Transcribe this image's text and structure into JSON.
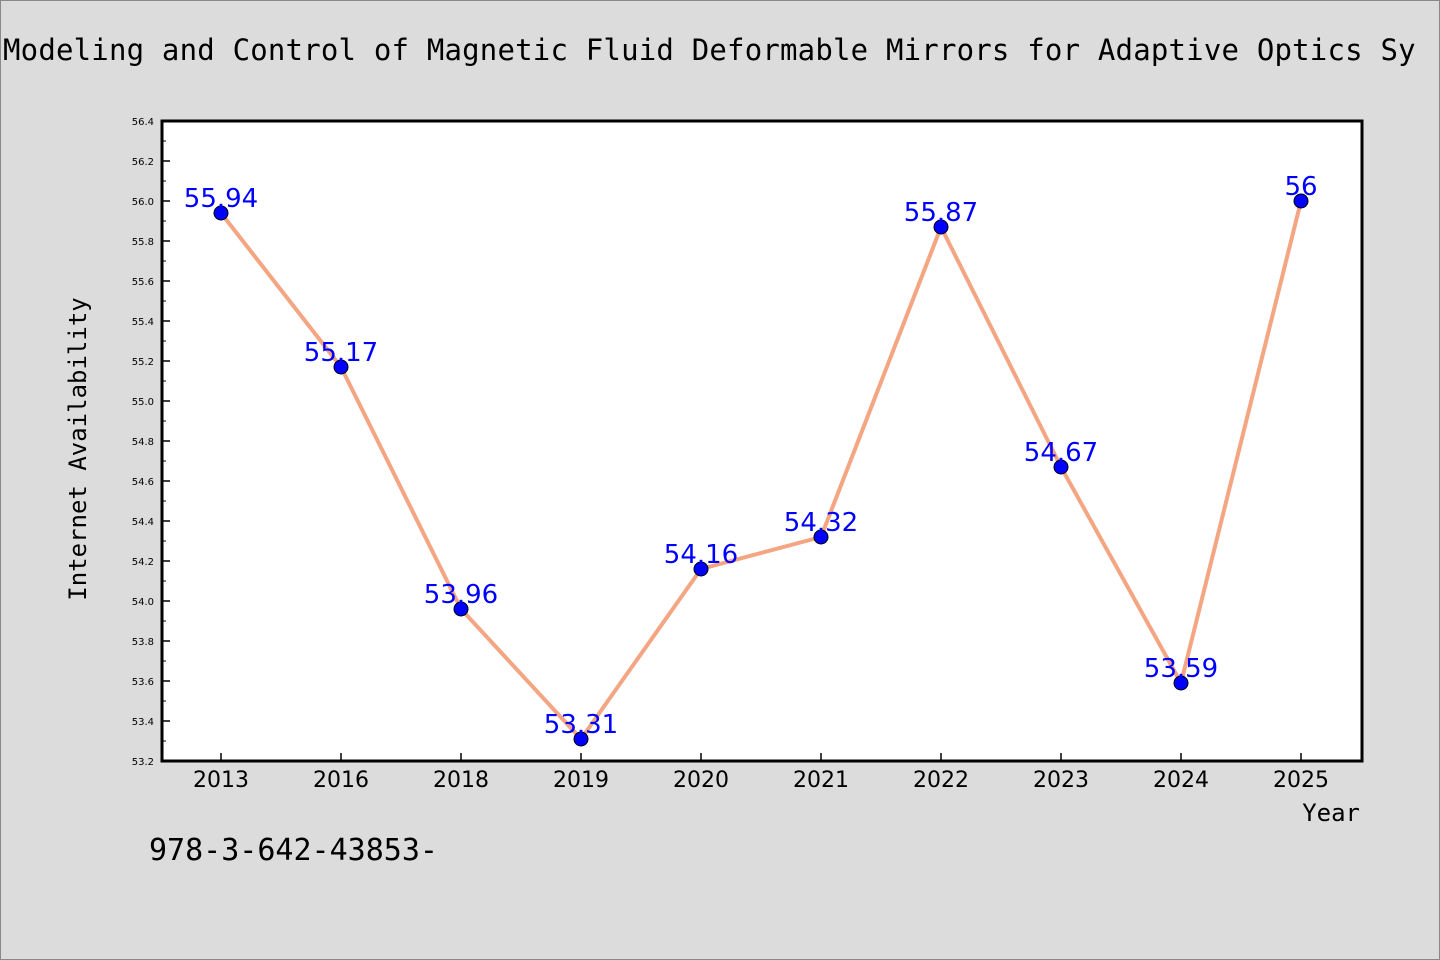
{
  "title": "Modeling and Control of Magnetic Fluid Deformable Mirrors for Adaptive Optics Sy",
  "footer_text": "978-3-642-43853-",
  "colors": {
    "background": "#dcdcdc",
    "plot_background": "#ffffff",
    "line": "#f4a582",
    "marker": "#0000ff",
    "data_label": "#0000ff"
  },
  "chart_data": {
    "type": "line",
    "title": "Modeling and Control of Magnetic Fluid Deformable Mirrors for Adaptive Optics Sy",
    "xlabel": "Year",
    "ylabel": "Internet Availability",
    "categories": [
      "2013",
      "2016",
      "2018",
      "2019",
      "2020",
      "2021",
      "2022",
      "2023",
      "2024",
      "2025"
    ],
    "series": [
      {
        "values": [
          55.94,
          55.17,
          53.96,
          53.31,
          54.16,
          54.32,
          55.87,
          54.67,
          53.59,
          56
        ]
      }
    ],
    "data_labels": [
      "55.94",
      "55.17",
      "53.96",
      "53.31",
      "54.16",
      "54.32",
      "55.87",
      "54.67",
      "53.59",
      "56"
    ],
    "ylim": [
      53.2,
      56.4
    ],
    "yticks": [
      "53.2",
      "53.4",
      "53.6",
      "53.8",
      "54.0",
      "54.2",
      "54.4",
      "54.6",
      "54.8",
      "55.0",
      "55.2",
      "55.4",
      "55.6",
      "55.8",
      "56.0",
      "56.2",
      "56.4"
    ],
    "grid": false,
    "legend": "none"
  }
}
